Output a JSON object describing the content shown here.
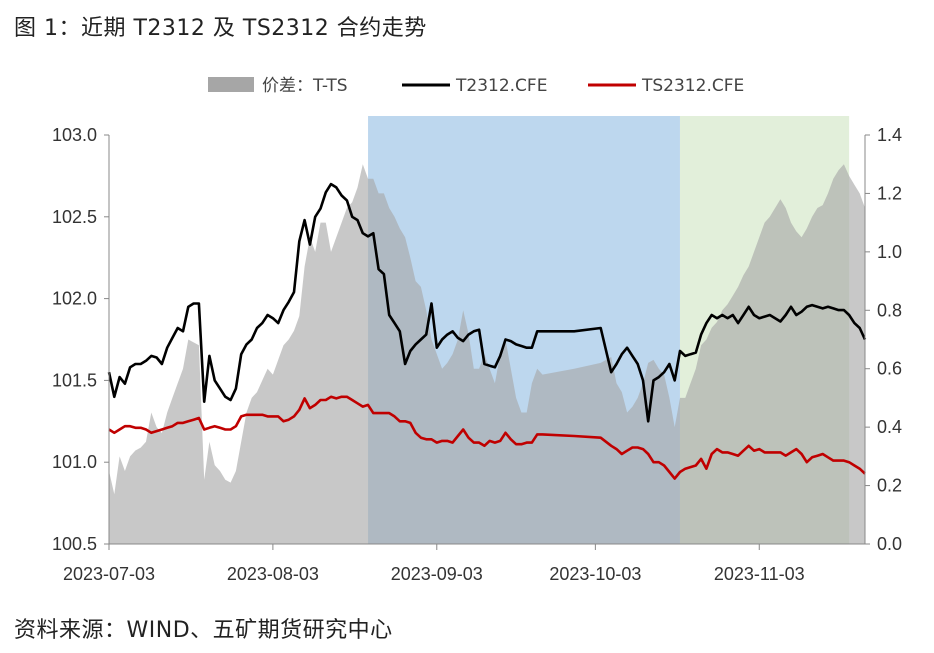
{
  "title": "图 1：近期 T2312 及 TS2312 合约走势",
  "source": "资料来源：WIND、五矿期货研究中心",
  "chart_data": {
    "type": "line",
    "title": "图 1：近期 T2312 及 TS2312 合约走势",
    "x_tick_labels": [
      "2023-07-03",
      "2023-08-03",
      "2023-09-03",
      "2023-10-03",
      "2023-11-03"
    ],
    "x_tick_days": [
      0,
      31,
      62,
      92,
      123
    ],
    "x_range_days": [
      0,
      143
    ],
    "y_left": {
      "range": [
        100.5,
        103.0
      ],
      "ticks": [
        "100.5",
        "101.0",
        "101.5",
        "102.0",
        "102.5",
        "103.0"
      ]
    },
    "y_right": {
      "range": [
        0.0,
        1.4
      ],
      "ticks": [
        "0.0",
        "0.2",
        "0.4",
        "0.6",
        "0.8",
        "1.0",
        "1.2",
        "1.4"
      ]
    },
    "legend": [
      {
        "label": "价差：T-TS",
        "kind": "area",
        "color": "#a6a6a6"
      },
      {
        "label": "T2312.CFE",
        "kind": "line",
        "color": "#000000"
      },
      {
        "label": "TS2312.CFE",
        "kind": "line",
        "color": "#c00000"
      }
    ],
    "shaded_regions": [
      {
        "from_day": 49,
        "to_day": 108,
        "color": "#bdd7ee"
      },
      {
        "from_day": 108,
        "to_day": 140,
        "color": "#e2efda"
      }
    ],
    "series": [
      {
        "name": "价差：T-TS",
        "axis": "right",
        "type": "area",
        "color": "#a6a6a6",
        "x": [
          0,
          1,
          2,
          3,
          4,
          5,
          6,
          7,
          8,
          9,
          10,
          11,
          12,
          13,
          14,
          15,
          16,
          17,
          18,
          19,
          20,
          21,
          22,
          23,
          24,
          25,
          26,
          27,
          28,
          29,
          30,
          31,
          32,
          33,
          34,
          35,
          36,
          37,
          38,
          39,
          40,
          41,
          42,
          43,
          44,
          45,
          46,
          47,
          48,
          49,
          50,
          51,
          52,
          53,
          54,
          55,
          56,
          57,
          58,
          59,
          60,
          61,
          62,
          63,
          64,
          65,
          66,
          67,
          68,
          69,
          70,
          71,
          72,
          73,
          74,
          75,
          76,
          77,
          78,
          79,
          80,
          81,
          82,
          88,
          93,
          95,
          96,
          97,
          98,
          99,
          100,
          101,
          102,
          103,
          104,
          105,
          106,
          107,
          108,
          109,
          110,
          111,
          112,
          113,
          114,
          115,
          116,
          117,
          118,
          119,
          120,
          121,
          122,
          123,
          124,
          125,
          126,
          127,
          128,
          129,
          130,
          131,
          132,
          133,
          134,
          135,
          136,
          137,
          138,
          139,
          140,
          141,
          142,
          143
        ],
        "values": [
          0.25,
          0.17,
          0.3,
          0.25,
          0.3,
          0.32,
          0.33,
          0.35,
          0.45,
          0.4,
          0.38,
          0.45,
          0.5,
          0.55,
          0.6,
          0.7,
          0.69,
          0.68,
          0.22,
          0.35,
          0.27,
          0.25,
          0.22,
          0.21,
          0.25,
          0.35,
          0.45,
          0.5,
          0.52,
          0.56,
          0.6,
          0.58,
          0.63,
          0.68,
          0.7,
          0.73,
          0.78,
          0.95,
          1.05,
          1.0,
          1.1,
          1.1,
          1.0,
          1.05,
          1.1,
          1.15,
          1.17,
          1.22,
          1.3,
          1.25,
          1.25,
          1.2,
          1.2,
          1.15,
          1.12,
          1.08,
          1.05,
          0.98,
          0.9,
          0.88,
          0.8,
          0.7,
          0.65,
          0.6,
          0.62,
          0.65,
          0.7,
          0.8,
          0.72,
          0.6,
          0.6,
          0.65,
          0.6,
          0.55,
          0.65,
          0.7,
          0.6,
          0.5,
          0.45,
          0.45,
          0.55,
          0.6,
          0.58,
          0.6,
          0.62,
          0.64,
          0.55,
          0.52,
          0.45,
          0.47,
          0.5,
          0.55,
          0.62,
          0.63,
          0.6,
          0.58,
          0.5,
          0.4,
          0.5,
          0.5,
          0.55,
          0.6,
          0.68,
          0.7,
          0.74,
          0.76,
          0.8,
          0.82,
          0.85,
          0.88,
          0.92,
          0.95,
          1.0,
          1.05,
          1.1,
          1.12,
          1.15,
          1.18,
          1.15,
          1.1,
          1.07,
          1.05,
          1.08,
          1.12,
          1.15,
          1.16,
          1.2,
          1.25,
          1.28,
          1.3,
          1.26,
          1.23,
          1.2,
          1.15
        ]
      },
      {
        "name": "T2312.CFE",
        "axis": "left",
        "type": "line",
        "color": "#000000",
        "x": [
          0,
          1,
          2,
          3,
          4,
          5,
          6,
          7,
          8,
          9,
          10,
          11,
          12,
          13,
          14,
          15,
          16,
          17,
          18,
          19,
          20,
          21,
          22,
          23,
          24,
          25,
          26,
          27,
          28,
          29,
          30,
          31,
          32,
          33,
          34,
          35,
          36,
          37,
          38,
          39,
          40,
          41,
          42,
          43,
          44,
          45,
          46,
          47,
          48,
          49,
          50,
          51,
          52,
          53,
          54,
          55,
          56,
          57,
          58,
          59,
          60,
          61,
          62,
          63,
          64,
          65,
          66,
          67,
          68,
          69,
          70,
          71,
          72,
          73,
          74,
          75,
          76,
          77,
          78,
          79,
          80,
          81,
          82,
          88,
          93,
          95,
          96,
          97,
          98,
          99,
          100,
          101,
          102,
          103,
          104,
          105,
          106,
          107,
          108,
          109,
          110,
          111,
          112,
          113,
          114,
          115,
          116,
          117,
          118,
          119,
          120,
          121,
          122,
          123,
          124,
          125,
          126,
          127,
          128,
          129,
          130,
          131,
          132,
          133,
          134,
          135,
          136,
          137,
          138,
          139,
          140,
          141,
          142,
          143
        ],
        "values": [
          101.55,
          101.4,
          101.52,
          101.48,
          101.58,
          101.6,
          101.6,
          101.62,
          101.65,
          101.64,
          101.6,
          101.7,
          101.76,
          101.82,
          101.8,
          101.95,
          101.97,
          101.97,
          101.37,
          101.65,
          101.5,
          101.45,
          101.4,
          101.38,
          101.45,
          101.66,
          101.72,
          101.75,
          101.82,
          101.85,
          101.9,
          101.88,
          101.85,
          101.93,
          101.98,
          102.04,
          102.35,
          102.48,
          102.33,
          102.5,
          102.55,
          102.65,
          102.7,
          102.68,
          102.63,
          102.6,
          102.5,
          102.48,
          102.4,
          102.38,
          102.4,
          102.18,
          102.15,
          101.9,
          101.85,
          101.8,
          101.6,
          101.68,
          101.72,
          101.75,
          101.78,
          101.97,
          101.7,
          101.75,
          101.78,
          101.8,
          101.76,
          101.74,
          101.78,
          101.8,
          101.81,
          101.6,
          101.59,
          101.58,
          101.65,
          101.75,
          101.74,
          101.72,
          101.71,
          101.7,
          101.7,
          101.8,
          101.8,
          101.8,
          101.82,
          101.55,
          101.6,
          101.66,
          101.7,
          101.65,
          101.6,
          101.5,
          101.25,
          101.5,
          101.52,
          101.55,
          101.6,
          101.5,
          101.68,
          101.65,
          101.66,
          101.67,
          101.78,
          101.85,
          101.9,
          101.88,
          101.9,
          101.88,
          101.9,
          101.85,
          101.9,
          101.95,
          101.9,
          101.88,
          101.89,
          101.9,
          101.88,
          101.86,
          101.9,
          101.95,
          101.9,
          101.92,
          101.95,
          101.96,
          101.95,
          101.94,
          101.95,
          101.94,
          101.93,
          101.93,
          101.9,
          101.85,
          101.82,
          101.75
        ]
      },
      {
        "name": "TS2312.CFE",
        "axis": "left",
        "type": "line",
        "color": "#c00000",
        "x": [
          0,
          1,
          2,
          3,
          4,
          5,
          6,
          7,
          8,
          9,
          10,
          11,
          12,
          13,
          14,
          15,
          16,
          17,
          18,
          19,
          20,
          21,
          22,
          23,
          24,
          25,
          26,
          27,
          28,
          29,
          30,
          31,
          32,
          33,
          34,
          35,
          36,
          37,
          38,
          39,
          40,
          41,
          42,
          43,
          44,
          45,
          46,
          47,
          48,
          49,
          50,
          51,
          52,
          53,
          54,
          55,
          56,
          57,
          58,
          59,
          60,
          61,
          62,
          63,
          64,
          65,
          66,
          67,
          68,
          69,
          70,
          71,
          72,
          73,
          74,
          75,
          76,
          77,
          78,
          79,
          80,
          81,
          82,
          88,
          93,
          95,
          96,
          97,
          98,
          99,
          100,
          101,
          102,
          103,
          104,
          105,
          106,
          107,
          108,
          109,
          110,
          111,
          112,
          113,
          114,
          115,
          116,
          117,
          118,
          119,
          120,
          121,
          122,
          123,
          124,
          125,
          126,
          127,
          128,
          129,
          130,
          131,
          132,
          133,
          134,
          135,
          136,
          137,
          138,
          139,
          140,
          141,
          142,
          143
        ],
        "values": [
          101.2,
          101.18,
          101.2,
          101.22,
          101.22,
          101.21,
          101.21,
          101.2,
          101.18,
          101.19,
          101.2,
          101.21,
          101.22,
          101.24,
          101.24,
          101.25,
          101.26,
          101.27,
          101.2,
          101.21,
          101.22,
          101.21,
          101.2,
          101.2,
          101.22,
          101.28,
          101.29,
          101.29,
          101.29,
          101.29,
          101.28,
          101.28,
          101.28,
          101.25,
          101.26,
          101.28,
          101.32,
          101.39,
          101.33,
          101.35,
          101.38,
          101.38,
          101.4,
          101.39,
          101.4,
          101.4,
          101.38,
          101.36,
          101.34,
          101.35,
          101.3,
          101.3,
          101.3,
          101.3,
          101.28,
          101.25,
          101.25,
          101.24,
          101.18,
          101.15,
          101.14,
          101.14,
          101.12,
          101.13,
          101.13,
          101.12,
          101.16,
          101.2,
          101.15,
          101.12,
          101.12,
          101.1,
          101.13,
          101.12,
          101.13,
          101.18,
          101.14,
          101.11,
          101.11,
          101.12,
          101.12,
          101.17,
          101.17,
          101.16,
          101.15,
          101.1,
          101.08,
          101.05,
          101.07,
          101.09,
          101.09,
          101.08,
          101.05,
          101.0,
          101.0,
          100.98,
          100.94,
          100.9,
          100.94,
          100.96,
          100.97,
          100.98,
          101.02,
          100.96,
          101.05,
          101.08,
          101.06,
          101.06,
          101.05,
          101.04,
          101.07,
          101.1,
          101.07,
          101.08,
          101.06,
          101.06,
          101.06,
          101.06,
          101.04,
          101.06,
          101.08,
          101.05,
          101.0,
          101.03,
          101.04,
          101.05,
          101.03,
          101.01,
          101.01,
          101.01,
          101.0,
          100.98,
          100.96,
          100.93
        ]
      }
    ]
  }
}
